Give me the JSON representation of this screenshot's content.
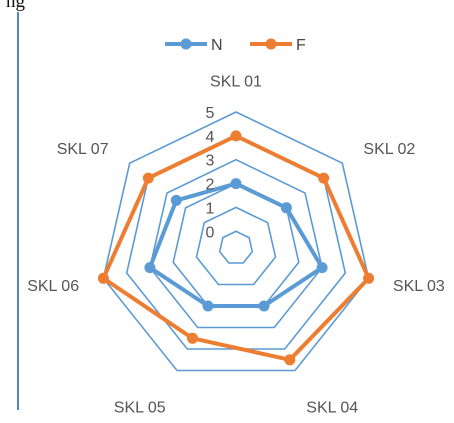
{
  "top_cut_text": "ng",
  "chart_data": {
    "type": "radar",
    "categories": [
      "SKL 01",
      "SKL 02",
      "SKL 03",
      "SKL 04",
      "SKL 05",
      "SKL 06",
      "SKL 07"
    ],
    "rmin": 0,
    "rmax": 5,
    "ticks": [
      0,
      1,
      2,
      3,
      4,
      5
    ],
    "grid": true,
    "legend_position": "top",
    "series": [
      {
        "name": "N",
        "color": "#5b9bd5",
        "values": [
          2,
          2,
          3,
          2,
          2,
          3,
          2.5
        ]
      },
      {
        "name": "F",
        "color": "#ed7d31",
        "values": [
          4,
          4,
          5,
          4.5,
          3.5,
          5,
          4
        ]
      }
    ],
    "grid_color": "#5b9bd5"
  }
}
